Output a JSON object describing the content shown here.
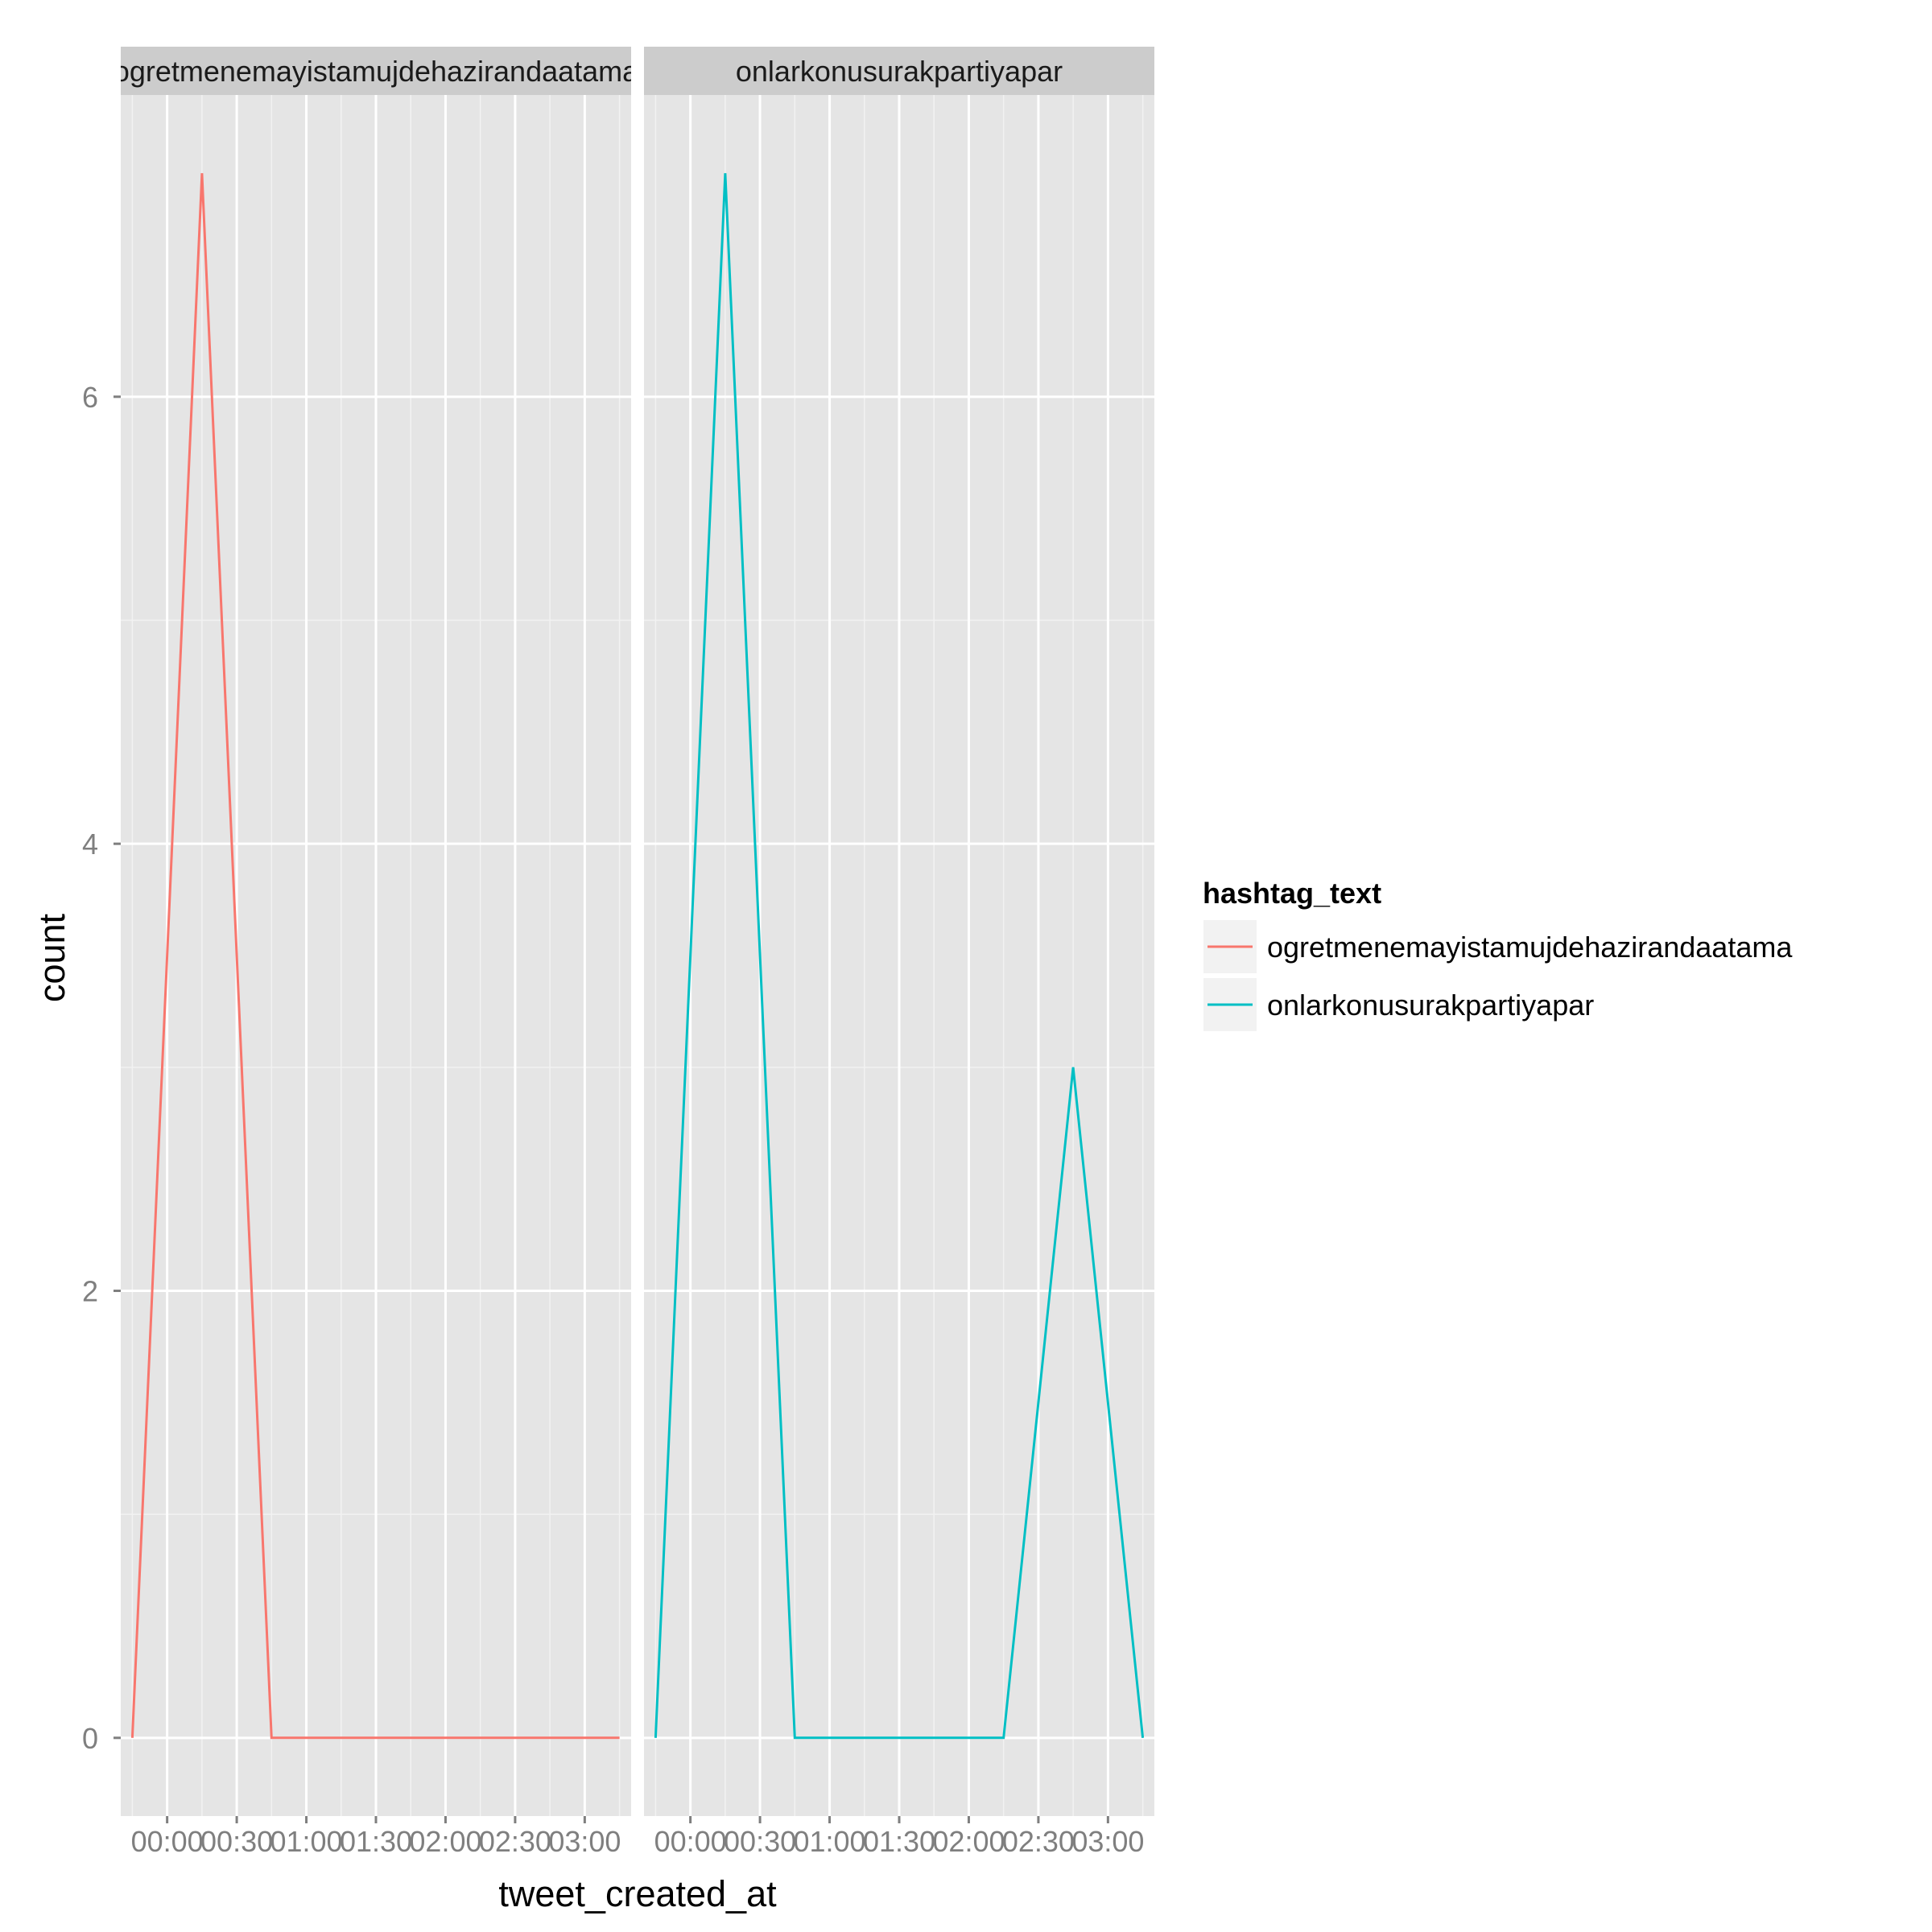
{
  "chart_data": {
    "type": "line",
    "xlabel": "tweet_created_at",
    "ylabel": "count",
    "x": [
      "23:45",
      "00:15",
      "00:45",
      "01:15",
      "01:45",
      "02:15",
      "02:45",
      "03:15"
    ],
    "xticks": [
      "00:00",
      "00:30",
      "01:00",
      "01:30",
      "02:00",
      "02:30",
      "03:00"
    ],
    "xlim": [
      "23:40",
      "03:20"
    ],
    "yticks": [
      0,
      2,
      4,
      6
    ],
    "ylim": [
      -0.35,
      7.35
    ],
    "grid": true,
    "legend": {
      "title": "hashtag_text",
      "position": "right"
    },
    "panels": [
      {
        "strip": "ogretmenemayistamujdehazirandaatama",
        "series": [
          {
            "name": "ogretmenemayistamujdehazirandaatama",
            "color": "#F8766D",
            "values": [
              0,
              7,
              0,
              0,
              0,
              0,
              0,
              0
            ]
          }
        ]
      },
      {
        "strip": "onlarkonusurakpartiyapar",
        "series": [
          {
            "name": "onlarkonusurakpartiyapar",
            "color": "#00BFC4",
            "values": [
              0,
              7,
              0,
              0,
              0,
              0,
              3,
              0
            ]
          }
        ]
      }
    ]
  }
}
